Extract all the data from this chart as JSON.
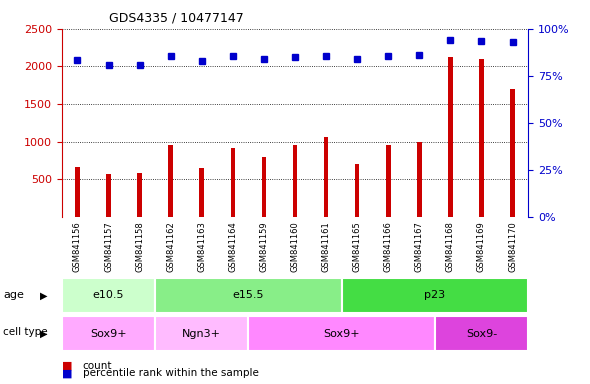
{
  "title": "GDS4335 / 10477147",
  "samples": [
    "GSM841156",
    "GSM841157",
    "GSM841158",
    "GSM841162",
    "GSM841163",
    "GSM841164",
    "GSM841159",
    "GSM841160",
    "GSM841161",
    "GSM841165",
    "GSM841166",
    "GSM841167",
    "GSM841168",
    "GSM841169",
    "GSM841170"
  ],
  "counts": [
    670,
    575,
    580,
    960,
    645,
    910,
    800,
    950,
    1060,
    700,
    950,
    1000,
    2130,
    2100,
    1700
  ],
  "percentile_ranks": [
    2080,
    2020,
    2020,
    2145,
    2070,
    2145,
    2100,
    2125,
    2135,
    2100,
    2140,
    2150,
    2350,
    2340,
    2320
  ],
  "left_ylim": [
    0,
    2500
  ],
  "left_yticks": [
    500,
    1000,
    1500,
    2000,
    2500
  ],
  "right_ytick_positions": [
    0,
    625,
    1250,
    1875,
    2500
  ],
  "right_ytick_labels": [
    "0%",
    "25%",
    "50%",
    "75%",
    "100%"
  ],
  "bar_color": "#cc0000",
  "dot_color": "#0000cc",
  "left_axis_color": "#cc0000",
  "right_axis_color": "#0000cc",
  "sample_bg_color": "#c8c8c8",
  "age_groups": [
    {
      "label": "e10.5",
      "start": 0,
      "end": 3,
      "color": "#ccffcc"
    },
    {
      "label": "e15.5",
      "start": 3,
      "end": 9,
      "color": "#88ee88"
    },
    {
      "label": "p23",
      "start": 9,
      "end": 15,
      "color": "#44dd44"
    }
  ],
  "cell_type_groups": [
    {
      "label": "Sox9+",
      "start": 0,
      "end": 3,
      "color": "#ffaaff"
    },
    {
      "label": "Ngn3+",
      "start": 3,
      "end": 6,
      "color": "#ffbbff"
    },
    {
      "label": "Sox9+",
      "start": 6,
      "end": 12,
      "color": "#ff88ff"
    },
    {
      "label": "Sox9-",
      "start": 12,
      "end": 15,
      "color": "#dd44dd"
    }
  ],
  "bar_width": 0.15,
  "figsize": [
    5.9,
    3.84
  ],
  "dpi": 100
}
